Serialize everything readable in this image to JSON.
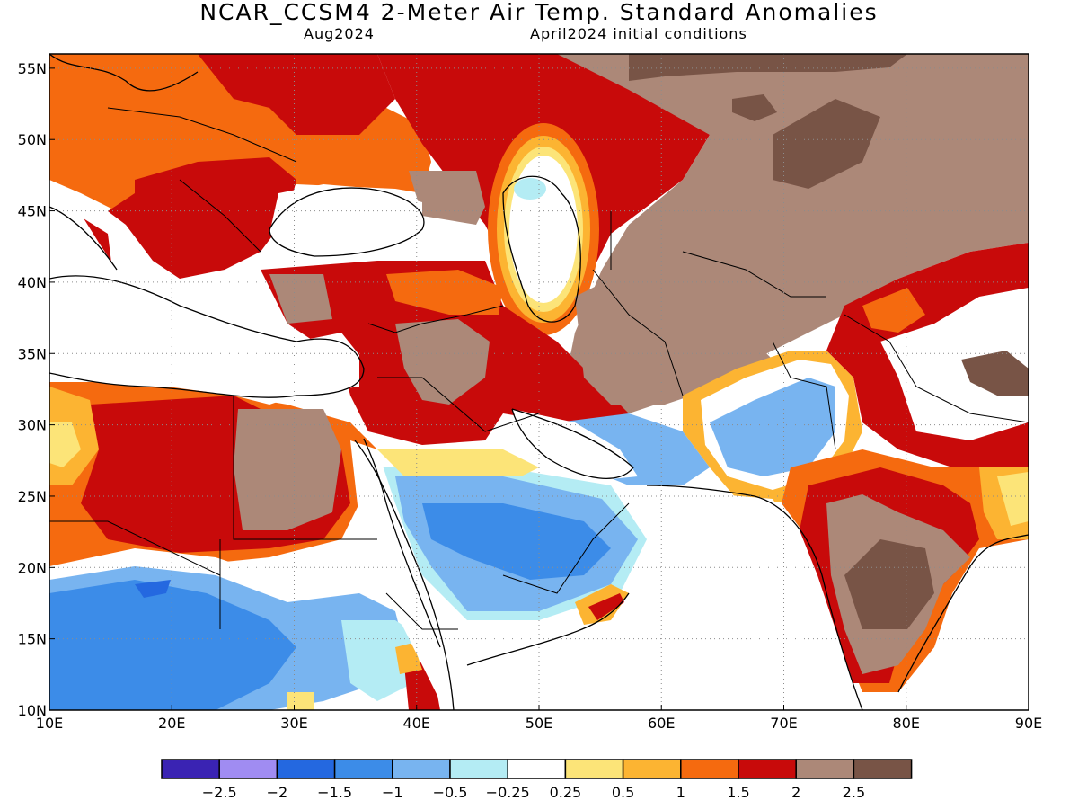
{
  "title": "NCAR_CCSM4 2-Meter Air Temp. Standard Anomalies",
  "subtitle_left": "Aug2024",
  "subtitle_right": "April2024 initial conditions",
  "map": {
    "lon_range": [
      10,
      90
    ],
    "lat_range": [
      10,
      56
    ],
    "x_ticks": [
      "10E",
      "20E",
      "30E",
      "40E",
      "50E",
      "60E",
      "70E",
      "80E",
      "90E"
    ],
    "y_ticks": [
      "10N",
      "15N",
      "20N",
      "25N",
      "30N",
      "35N",
      "40N",
      "45N",
      "50N",
      "55N"
    ],
    "gridlines": "dotted"
  },
  "legend": {
    "colors": [
      "#3a23b3",
      "#a08cf2",
      "#2468e0",
      "#3c8ce8",
      "#78b4f0",
      "#b4ecf4",
      "#ffffff",
      "#fce478",
      "#fcb432",
      "#f56a0f",
      "#c80a0a",
      "#ac8878",
      "#785446"
    ],
    "labels": [
      "-2.5",
      "-2",
      "-1.5",
      "-1",
      "-0.5",
      "-0.25",
      "0.25",
      "0.5",
      "1",
      "1.5",
      "2",
      "2.5"
    ]
  },
  "colors": {
    "below_neg2_5": "#3a23b3",
    "neg2_5_to_neg2": "#a08cf2",
    "neg2_to_neg1_5": "#2468e0",
    "neg1_5_to_neg1": "#3c8ce8",
    "neg1_to_neg0_5": "#78b4f0",
    "neg0_5_to_neg0_25": "#b4ecf4",
    "neutral": "#ffffff",
    "p0_25_to_0_5": "#fce478",
    "p0_5_to_1": "#fcb432",
    "p1_to_1_5": "#f56a0f",
    "p1_5_to_2": "#c80a0a",
    "p2_to_2_5": "#ac8878",
    "above_2_5": "#785446"
  }
}
